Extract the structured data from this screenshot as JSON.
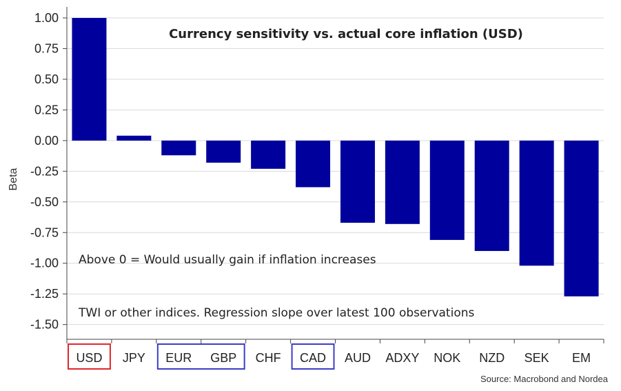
{
  "chart_data": {
    "type": "bar",
    "title": "Currency sensitivity vs. actual core inflation (USD)",
    "ylabel": "Beta",
    "xlabel": "",
    "categories": [
      "USD",
      "JPY",
      "EUR",
      "GBP",
      "CHF",
      "CAD",
      "AUD",
      "ADXY",
      "NOK",
      "NZD",
      "SEK",
      "EM"
    ],
    "values": [
      1.0,
      0.04,
      -0.12,
      -0.18,
      -0.23,
      -0.38,
      -0.67,
      -0.68,
      -0.81,
      -0.9,
      -1.02,
      -1.27
    ],
    "ylim": [
      -1.62,
      1.09
    ],
    "yticks": [
      1.0,
      0.75,
      0.5,
      0.25,
      0.0,
      -0.25,
      -0.5,
      -0.75,
      -1.0,
      -1.25,
      -1.5
    ],
    "ytick_labels": [
      "1.00",
      "0.75",
      "0.50",
      "0.25",
      "0.00",
      "-0.25",
      "-0.50",
      "-0.75",
      "-1.00",
      "-1.25",
      "-1.50"
    ],
    "grid": true,
    "bar_color": "#00009c",
    "annotations": [
      "Above 0 = Would usually gain if inflation increases",
      "TWI or other indices. Regression slope over latest 100 observations"
    ],
    "highlight_boxes": [
      {
        "categories": [
          "USD"
        ],
        "color": "#e0262c"
      },
      {
        "categories": [
          "EUR",
          "GBP"
        ],
        "color": "#3c3cc8"
      },
      {
        "categories": [
          "CAD"
        ],
        "color": "#3c3cc8"
      }
    ]
  },
  "source": "Source: Macrobond and Nordea"
}
